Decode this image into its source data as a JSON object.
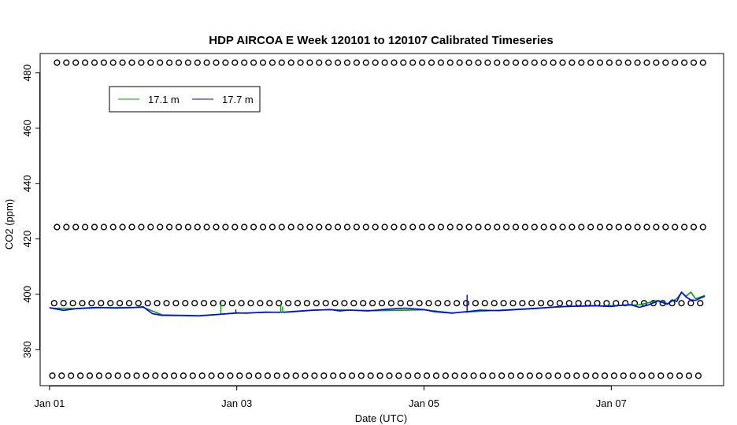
{
  "chart_data": {
    "type": "line",
    "title": "HDP AIRCOA E  Week 120101 to 120107  Calibrated Timeseries",
    "xlabel": "Date (UTC)",
    "ylabel": "CO2 (ppm)",
    "xlim_days": [
      -0.1,
      7.2
    ],
    "ylim": [
      367,
      487
    ],
    "x_ticks": [
      {
        "value": 0,
        "label": "Jan 01"
      },
      {
        "value": 2,
        "label": "Jan 03"
      },
      {
        "value": 4,
        "label": "Jan 05"
      },
      {
        "value": 6,
        "label": "Jan 07"
      }
    ],
    "y_ticks": [
      380,
      400,
      420,
      440,
      460,
      480
    ],
    "legend": {
      "position": "top-left",
      "entries": [
        {
          "name": "17.1 m",
          "color": "#00a000"
        },
        {
          "name": "17.7 m",
          "color": "#0000ff"
        }
      ]
    },
    "calibration_levels": [
      {
        "value": 483.7,
        "x_start": 0.08,
        "x_step": 0.1
      },
      {
        "value": 424.3,
        "x_start": 0.08,
        "x_step": 0.1
      },
      {
        "value": 396.8,
        "x_start": 0.05,
        "x_step": 0.1
      },
      {
        "value": 370.6,
        "x_start": 0.03,
        "x_step": 0.1
      }
    ],
    "calibration_x_end": 7.0,
    "series": [
      {
        "name": "17.7 m",
        "color": "#0000ff",
        "x": [
          0.0,
          0.05,
          0.15,
          0.3,
          0.5,
          0.7,
          0.9,
          1.0,
          1.1,
          1.2,
          1.4,
          1.6,
          1.8,
          1.9,
          2.0,
          2.1,
          2.3,
          2.45,
          2.5,
          2.6,
          2.8,
          3.0,
          3.1,
          3.2,
          3.4,
          3.6,
          3.8,
          3.95,
          4.0,
          4.1,
          4.25,
          4.3,
          4.4,
          4.5,
          4.6,
          4.8,
          5.0,
          5.2,
          5.4,
          5.6,
          5.8,
          6.0,
          6.1,
          6.2,
          6.3,
          6.4,
          6.5,
          6.6,
          6.65,
          6.7,
          6.75,
          6.8,
          6.85,
          6.9,
          6.95,
          7.0
        ],
        "y": [
          395.2,
          394.8,
          394.2,
          394.9,
          395.3,
          395.0,
          395.2,
          395.5,
          393.0,
          392.4,
          392.3,
          392.2,
          392.7,
          393.0,
          393.3,
          393.2,
          393.6,
          393.5,
          393.5,
          393.7,
          394.2,
          394.5,
          394.0,
          394.3,
          394.0,
          394.6,
          395.0,
          394.6,
          394.5,
          393.8,
          393.3,
          393.2,
          393.6,
          393.9,
          394.3,
          394.1,
          394.5,
          394.9,
          395.4,
          395.7,
          395.9,
          395.6,
          396.0,
          396.3,
          395.3,
          396.2,
          397.6,
          396.4,
          398.0,
          397.4,
          400.8,
          399.0,
          398.0,
          397.8,
          398.6,
          399.3
        ]
      },
      {
        "name": "17.1 m",
        "color": "#00a000",
        "x": [
          0.0,
          0.3,
          0.6,
          1.0,
          1.2,
          1.6,
          2.0,
          2.5,
          2.8,
          3.0,
          3.5,
          4.0,
          4.3,
          4.6,
          5.0,
          5.5,
          6.0,
          6.3,
          6.5,
          6.6,
          6.7,
          6.75,
          6.8,
          6.85,
          6.9,
          6.95,
          7.0
        ],
        "y": [
          395.0,
          394.8,
          395.2,
          395.3,
          392.6,
          392.3,
          393.2,
          393.6,
          394.3,
          394.4,
          394.1,
          394.4,
          393.3,
          393.9,
          394.6,
          395.6,
          395.9,
          396.2,
          397.8,
          396.6,
          398.4,
          400.6,
          399.3,
          400.8,
          398.4,
          399.0,
          399.6
        ]
      }
    ],
    "spikes": [
      {
        "series": "17.7 m",
        "x": 4.46,
        "y_from": 393.4,
        "y_to": 399.8
      },
      {
        "series": "17.7 m",
        "x": 1.99,
        "y_from": 393.0,
        "y_to": 394.5
      },
      {
        "series": "17.1 m",
        "x": 1.83,
        "y_from": 393.0,
        "y_to": 397.0
      },
      {
        "series": "17.1 m",
        "x": 2.47,
        "y_from": 393.3,
        "y_to": 396.6
      },
      {
        "series": "17.1 m",
        "x": 2.49,
        "y_from": 393.3,
        "y_to": 395.6
      }
    ]
  }
}
